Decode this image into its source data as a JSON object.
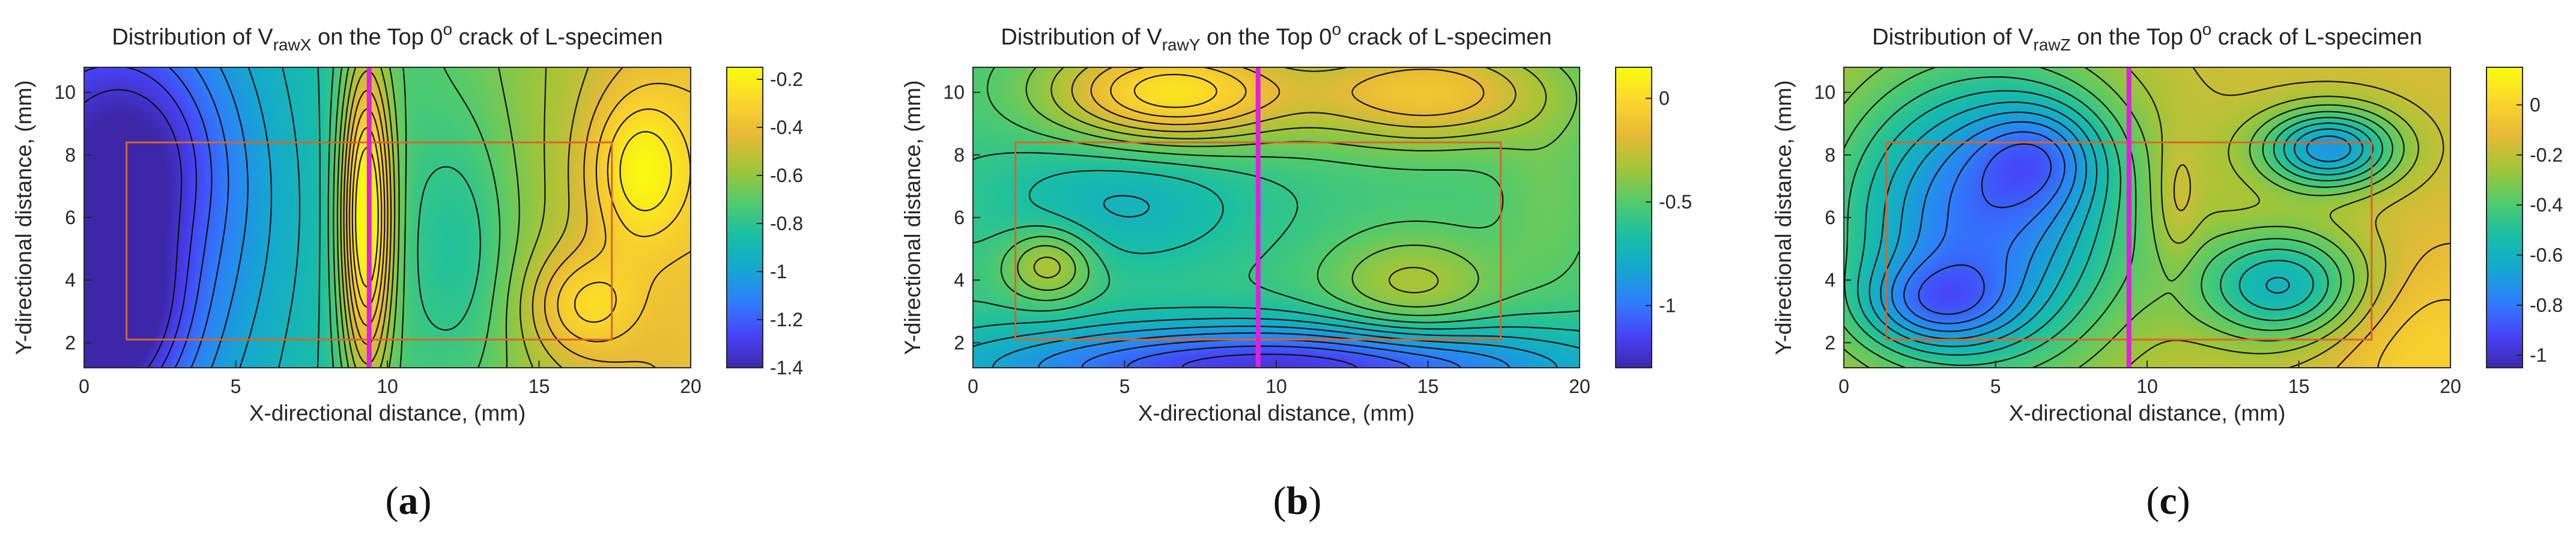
{
  "colors": {
    "colormap": [
      "#3e26a8",
      "#4743f8",
      "#2f7efc",
      "#14a8d0",
      "#18bfa4",
      "#52cb6b",
      "#a3c537",
      "#e6ba36",
      "#fbd52c",
      "#f9fb0e"
    ],
    "contour": "#111111",
    "crack_line": "#e020e0",
    "box": "#d8652a"
  },
  "chart_data": [
    {
      "type": "heatmap",
      "panel_letter": "a",
      "title": {
        "pre": "Distribution of V",
        "sub": "rawX",
        "mid": " on the Top 0",
        "sup": "o",
        "post": " crack of L-specimen"
      },
      "xlabel": "X-directional distance, (mm)",
      "ylabel": "Y-directional distance, (mm)",
      "xlim": [
        0,
        20
      ],
      "ylim": [
        1.2,
        10.8
      ],
      "xticks": [
        "0",
        "5",
        "10",
        "15",
        "20"
      ],
      "yticks": [
        "2",
        "4",
        "6",
        "8",
        "10"
      ],
      "colorbar": {
        "range": [
          -1.4,
          -0.15
        ],
        "ticks": [
          "-0.2",
          "-0.4",
          "-0.6",
          "-0.8",
          "-1",
          "-1.2",
          "-1.4"
        ]
      },
      "crack_line_x": 9.4,
      "box": {
        "x": [
          1.4,
          17.4
        ],
        "y": [
          2.1,
          8.4
        ]
      },
      "field": {
        "base": -0.75,
        "grad": [
          0.035,
          0.0
        ],
        "blobs": [
          {
            "x": 0.5,
            "y": 3.0,
            "sx": 1.8,
            "sy": 2.2,
            "a": -0.55
          },
          {
            "x": 1.5,
            "y": 8.0,
            "sx": 2.0,
            "sy": 2.5,
            "a": -0.35
          },
          {
            "x": 9.3,
            "y": 6.0,
            "sx": 0.6,
            "sy": 3.5,
            "a": 0.7
          },
          {
            "x": 12.5,
            "y": 5.0,
            "sx": 1.2,
            "sy": 3.0,
            "a": -0.15
          },
          {
            "x": 18.3,
            "y": 7.5,
            "sx": 1.2,
            "sy": 1.8,
            "a": 0.3
          },
          {
            "x": 16.5,
            "y": 3.2,
            "sx": 1.3,
            "sy": 1.2,
            "a": 0.25
          },
          {
            "x": 4.5,
            "y": 6.0,
            "sx": 2.5,
            "sy": 4.0,
            "a": -0.1
          }
        ]
      }
    },
    {
      "type": "heatmap",
      "panel_letter": "b",
      "title": {
        "pre": "Distribution of V",
        "sub": "rawY",
        "mid": " on the Top 0",
        "sup": "o",
        "post": " crack of L-specimen"
      },
      "xlabel": "X-directional distance, (mm)",
      "ylabel": "Y-directional distance, (mm)",
      "xlim": [
        0,
        20
      ],
      "ylim": [
        1.2,
        10.8
      ],
      "xticks": [
        "0",
        "5",
        "10",
        "15",
        "20"
      ],
      "yticks": [
        "2",
        "4",
        "6",
        "8",
        "10"
      ],
      "colorbar": {
        "range": [
          -1.3,
          0.15
        ],
        "ticks": [
          "0",
          "-0.5",
          "-1"
        ]
      },
      "crack_line_x": 9.4,
      "box": {
        "x": [
          1.4,
          17.4
        ],
        "y": [
          2.1,
          8.4
        ]
      },
      "field": {
        "base": -0.55,
        "grad": [
          0.0,
          0.0
        ],
        "blobs": [
          {
            "x": 6.5,
            "y": 10.0,
            "sx": 2.8,
            "sy": 1.2,
            "a": 0.6
          },
          {
            "x": 15.0,
            "y": 10.0,
            "sx": 3.0,
            "sy": 1.2,
            "a": 0.45
          },
          {
            "x": 10.0,
            "y": 1.2,
            "sx": 7.0,
            "sy": 1.0,
            "a": -0.65
          },
          {
            "x": 2.5,
            "y": 4.5,
            "sx": 1.0,
            "sy": 0.8,
            "a": 0.3
          },
          {
            "x": 14.5,
            "y": 3.8,
            "sx": 2.0,
            "sy": 1.2,
            "a": 0.25
          },
          {
            "x": 5.0,
            "y": 6.5,
            "sx": 3.0,
            "sy": 1.5,
            "a": -0.2
          },
          {
            "x": 19.0,
            "y": 6.5,
            "sx": 1.2,
            "sy": 2.0,
            "a": 0.1
          }
        ]
      }
    },
    {
      "type": "heatmap",
      "panel_letter": "c",
      "title": {
        "pre": "Distribution of V",
        "sub": "rawZ",
        "mid": " on the Top 0",
        "sup": "o",
        "post": " crack of L-specimen"
      },
      "xlabel": "X-directional distance, (mm)",
      "ylabel": "Y-directional distance, (mm)",
      "xlim": [
        0,
        20
      ],
      "ylim": [
        1.2,
        10.8
      ],
      "xticks": [
        "0",
        "5",
        "10",
        "15",
        "20"
      ],
      "yticks": [
        "2",
        "4",
        "6",
        "8",
        "10"
      ],
      "colorbar": {
        "range": [
          -1.05,
          0.15
        ],
        "ticks": [
          "0",
          "-0.2",
          "-0.4",
          "-0.6",
          "-0.8",
          "-1"
        ]
      },
      "crack_line_x": 9.4,
      "box": {
        "x": [
          1.4,
          17.4
        ],
        "y": [
          2.1,
          8.4
        ]
      },
      "field": {
        "base": -0.15,
        "grad": [
          0.0,
          0.0
        ],
        "blobs": [
          {
            "x": 4.5,
            "y": 6.0,
            "sx": 3.5,
            "sy": 3.5,
            "a": -0.65
          },
          {
            "x": 3.0,
            "y": 3.2,
            "sx": 1.8,
            "sy": 1.0,
            "a": -0.3
          },
          {
            "x": 6.5,
            "y": 8.0,
            "sx": 1.5,
            "sy": 1.2,
            "a": -0.25
          },
          {
            "x": 16.0,
            "y": 8.2,
            "sx": 1.6,
            "sy": 0.9,
            "a": -0.55
          },
          {
            "x": 14.5,
            "y": 3.8,
            "sx": 2.0,
            "sy": 1.3,
            "a": -0.45
          },
          {
            "x": 11.0,
            "y": 6.5,
            "sx": 0.5,
            "sy": 1.5,
            "a": 0.1
          },
          {
            "x": 19.0,
            "y": 2.0,
            "sx": 2.5,
            "sy": 2.0,
            "a": 0.15
          }
        ]
      }
    }
  ]
}
